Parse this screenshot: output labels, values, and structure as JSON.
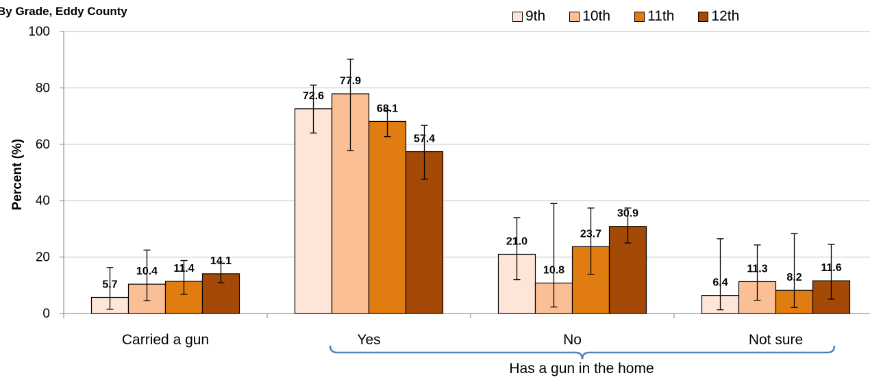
{
  "chart_data": {
    "type": "bar",
    "title": "By Grade, Eddy County",
    "ylabel": "Percent (%)",
    "xlabel": "",
    "ylim": [
      0,
      100
    ],
    "yticks": [
      0,
      20,
      40,
      60,
      80,
      100
    ],
    "grid": true,
    "legend_position": "top-right",
    "categories": [
      "Carried a gun",
      "Yes",
      "No",
      "Not sure"
    ],
    "group_label": "Has a gun in the home",
    "grouped_categories": [
      "Yes",
      "No",
      "Not sure"
    ],
    "series": [
      {
        "name": "9th",
        "color": "#fde5d8",
        "values": [
          5.7,
          72.6,
          21.0,
          6.4
        ],
        "ci_low": [
          1.5,
          64.0,
          12.0,
          1.3
        ],
        "ci_high": [
          16.3,
          81.0,
          34.0,
          26.5
        ]
      },
      {
        "name": "10th",
        "color": "#fbbf96",
        "values": [
          10.4,
          77.9,
          10.8,
          11.3
        ],
        "ci_low": [
          4.5,
          57.8,
          2.3,
          4.7
        ],
        "ci_high": [
          22.5,
          90.2,
          39.0,
          24.3
        ]
      },
      {
        "name": "11th",
        "color": "#e17c10",
        "values": [
          11.4,
          68.1,
          23.7,
          8.2
        ],
        "ci_low": [
          6.8,
          62.7,
          13.9,
          2.1
        ],
        "ci_high": [
          18.8,
          72.0,
          37.4,
          28.3
        ]
      },
      {
        "name": "12th",
        "color": "#a44a06",
        "values": [
          14.1,
          57.4,
          30.9,
          11.6
        ],
        "ci_low": [
          10.9,
          47.6,
          25.0,
          5.1
        ],
        "ci_high": [
          17.7,
          66.7,
          37.4,
          24.5
        ]
      }
    ]
  },
  "colors": {
    "bracket": "#4f81bd",
    "grid": "#c0c0c0",
    "axis": "#808080"
  }
}
